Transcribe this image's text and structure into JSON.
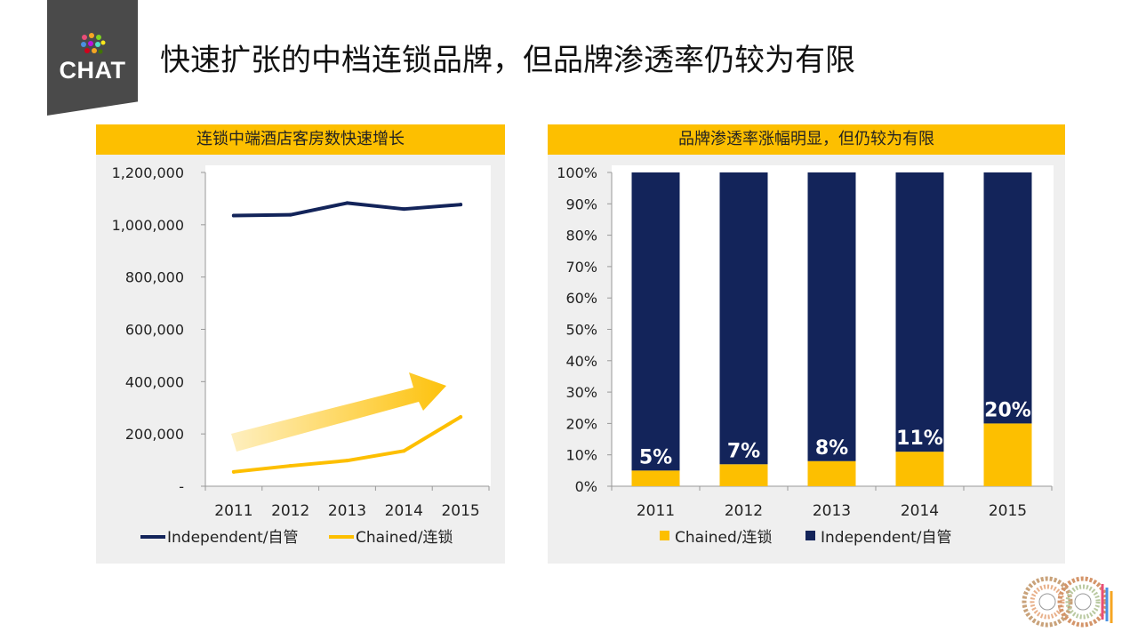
{
  "slide": {
    "logo_text": "CHAT",
    "title": "快速扩张的中档连锁品牌，但品牌渗透率仍较为有限"
  },
  "colors": {
    "navy": "#13245a",
    "gold": "#fdbf00",
    "panel_bg": "#efefef",
    "logo_bg": "#4a4a4a"
  },
  "chart_data": [
    {
      "type": "line",
      "title": "连锁中端酒店客房数快速增长",
      "categories": [
        "2011",
        "2012",
        "2013",
        "2014",
        "2015"
      ],
      "series": [
        {
          "name": "Independent/自管",
          "color": "#13245a",
          "values": [
            1035000,
            1038000,
            1083000,
            1060000,
            1077000
          ]
        },
        {
          "name": "Chained/连锁",
          "color": "#fdbf00",
          "values": [
            55000,
            78000,
            98000,
            135000,
            265000
          ]
        }
      ],
      "ylim": [
        0,
        1200000
      ],
      "yticks": [
        0,
        200000,
        400000,
        600000,
        800000,
        1000000,
        1200000
      ],
      "ytick_labels": [
        "-",
        "200,000",
        "400,000",
        "600,000",
        "800,000",
        "1,000,000",
        "1,200,000"
      ],
      "annotation": "upward-trend-arrow",
      "legend": "bottom",
      "grid": false
    },
    {
      "type": "bar",
      "stacked": true,
      "title": "品牌渗透率涨幅明显，但仍较为有限",
      "categories": [
        "2011",
        "2012",
        "2013",
        "2014",
        "2015"
      ],
      "series": [
        {
          "name": "Chained/连锁",
          "color": "#fdbf00",
          "values": [
            5,
            7,
            8,
            11,
            20
          ]
        },
        {
          "name": "Independent/自管",
          "color": "#13245a",
          "values": [
            95,
            93,
            92,
            89,
            80
          ]
        }
      ],
      "data_labels": [
        "5%",
        "7%",
        "8%",
        "11%",
        "20%"
      ],
      "ylim": [
        0,
        100
      ],
      "yticks": [
        0,
        10,
        20,
        30,
        40,
        50,
        60,
        70,
        80,
        90,
        100
      ],
      "ytick_labels": [
        "0%",
        "10%",
        "20%",
        "30%",
        "40%",
        "50%",
        "60%",
        "70%",
        "80%",
        "90%",
        "100%"
      ],
      "legend": "bottom",
      "grid": false
    }
  ]
}
